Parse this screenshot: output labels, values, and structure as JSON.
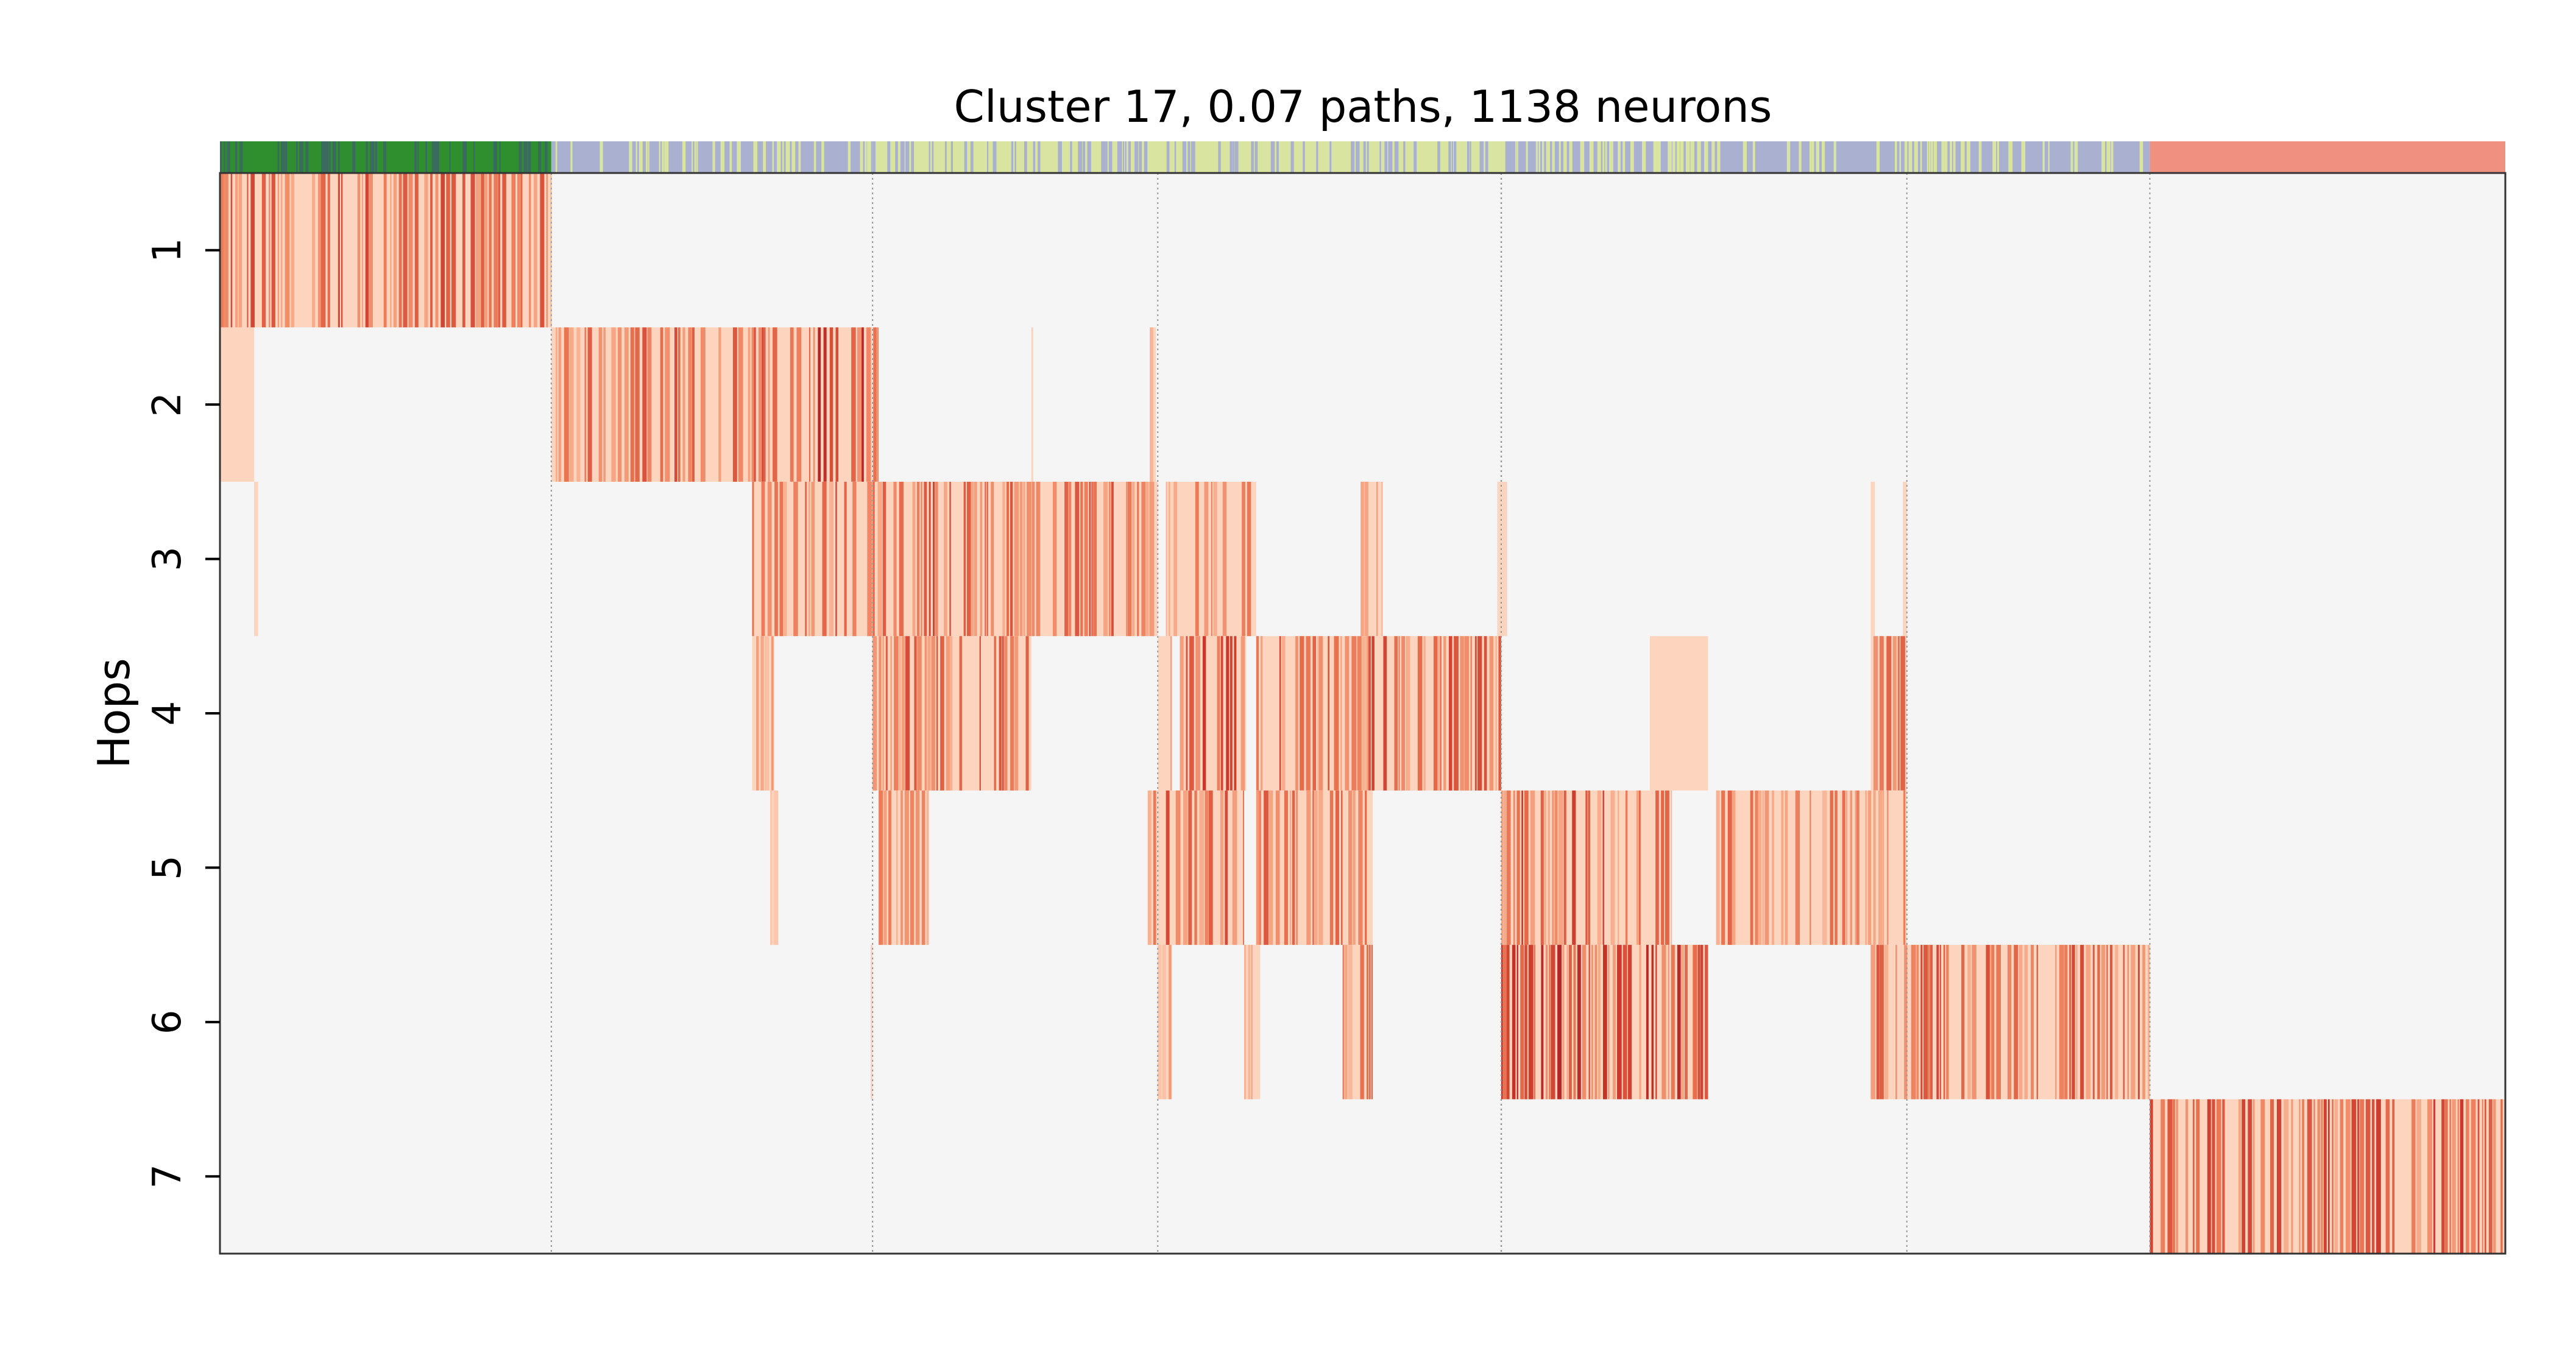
{
  "chart_data": {
    "type": "heatmap",
    "title": "Cluster 17, 0.07 paths, 1138 neurons",
    "ylabel": "Hops",
    "xlabel": "",
    "y_categories": [
      "1",
      "2",
      "3",
      "4",
      "5",
      "6",
      "7"
    ],
    "x_range": [
      0,
      1138
    ],
    "grid": "vertical dotted lines at block boundaries",
    "block_boundaries": [
      165,
      325,
      467,
      638,
      840,
      961
    ],
    "colormap": [
      "#fdd4be",
      "#f7a987",
      "#e8714f",
      "#cc3a2d",
      "#a51c20"
    ],
    "background_color": "#f5f5f5",
    "category_strip_colors": [
      "#2f8f2f",
      "#3a6b5e",
      "#aab0d0",
      "#d8e4a0",
      "#f09080"
    ],
    "rows": [
      {
        "hop": "1",
        "segments": [
          {
            "start": 0,
            "end": 165,
            "intensity": 0.55
          }
        ]
      },
      {
        "hop": "2",
        "segments": [
          {
            "start": 0,
            "end": 17,
            "intensity": 0.15
          },
          {
            "start": 165,
            "end": 265,
            "intensity": 0.55
          },
          {
            "start": 265,
            "end": 328,
            "intensity": 0.75
          },
          {
            "start": 404,
            "end": 405,
            "intensity": 0.2
          },
          {
            "start": 463,
            "end": 466,
            "intensity": 0.2
          }
        ]
      },
      {
        "hop": "3",
        "segments": [
          {
            "start": 17,
            "end": 19,
            "intensity": 0.15
          },
          {
            "start": 265,
            "end": 330,
            "intensity": 0.5
          },
          {
            "start": 330,
            "end": 467,
            "intensity": 0.55
          },
          {
            "start": 471,
            "end": 516,
            "intensity": 0.4
          },
          {
            "start": 568,
            "end": 579,
            "intensity": 0.3
          },
          {
            "start": 636,
            "end": 641,
            "intensity": 0.25
          },
          {
            "start": 822,
            "end": 824,
            "intensity": 0.15
          },
          {
            "start": 838,
            "end": 840,
            "intensity": 0.15
          }
        ]
      },
      {
        "hop": "4",
        "segments": [
          {
            "start": 265,
            "end": 276,
            "intensity": 0.3
          },
          {
            "start": 325,
            "end": 404,
            "intensity": 0.55
          },
          {
            "start": 467,
            "end": 474,
            "intensity": 0.3
          },
          {
            "start": 478,
            "end": 511,
            "intensity": 0.6
          },
          {
            "start": 516,
            "end": 638,
            "intensity": 0.55
          },
          {
            "start": 712,
            "end": 741,
            "intensity": 0.15
          },
          {
            "start": 822,
            "end": 840,
            "intensity": 0.5
          }
        ]
      },
      {
        "hop": "5",
        "segments": [
          {
            "start": 274,
            "end": 278,
            "intensity": 0.2
          },
          {
            "start": 328,
            "end": 353,
            "intensity": 0.35
          },
          {
            "start": 462,
            "end": 510,
            "intensity": 0.55
          },
          {
            "start": 516,
            "end": 574,
            "intensity": 0.5
          },
          {
            "start": 638,
            "end": 723,
            "intensity": 0.6
          },
          {
            "start": 745,
            "end": 840,
            "intensity": 0.45
          }
        ]
      },
      {
        "hop": "6",
        "segments": [
          {
            "start": 324,
            "end": 325,
            "intensity": 0.3
          },
          {
            "start": 467,
            "end": 474,
            "intensity": 0.25
          },
          {
            "start": 510,
            "end": 518,
            "intensity": 0.2
          },
          {
            "start": 559,
            "end": 574,
            "intensity": 0.45
          },
          {
            "start": 638,
            "end": 741,
            "intensity": 0.7
          },
          {
            "start": 822,
            "end": 961,
            "intensity": 0.55
          }
        ]
      },
      {
        "hop": "7",
        "segments": [
          {
            "start": 961,
            "end": 1138,
            "intensity": 0.6
          }
        ]
      }
    ]
  }
}
